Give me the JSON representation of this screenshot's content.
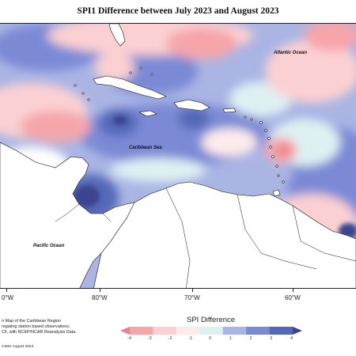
{
  "title": "SPI1 Difference between July 2023 and August 2023",
  "map": {
    "ocean_labels": {
      "atlantic": "Atlantic Ocean",
      "caribbean": "Caribbean Sea",
      "pacific": "Pacific Ocean"
    },
    "longitude_labels": [
      "0°W",
      "80°W",
      "70°W",
      "60°W"
    ]
  },
  "footnote": {
    "lines": [
      "n Map of the Caribbean Region",
      "regating station based observations,",
      "CF, with NCEP/NCAR Reanalysis Data."
    ],
    "credit": "CIMH August 2023"
  },
  "legend": {
    "title": "SPI Difference",
    "ticks": [
      "-4",
      "-3",
      "-2",
      "-1",
      "0",
      "1",
      "2",
      "3",
      "4"
    ],
    "colors": [
      "#f07f86",
      "#f6a6ab",
      "#fbd0d2",
      "#fdebec",
      "#dff0f3",
      "#aab5e4",
      "#7c8ad6",
      "#5567b8",
      "#3a4590"
    ]
  },
  "colors": {
    "land": "#ffffff",
    "coast": "#111111",
    "drier": "#f6a6ab",
    "wetter": "#7c8ad6"
  }
}
